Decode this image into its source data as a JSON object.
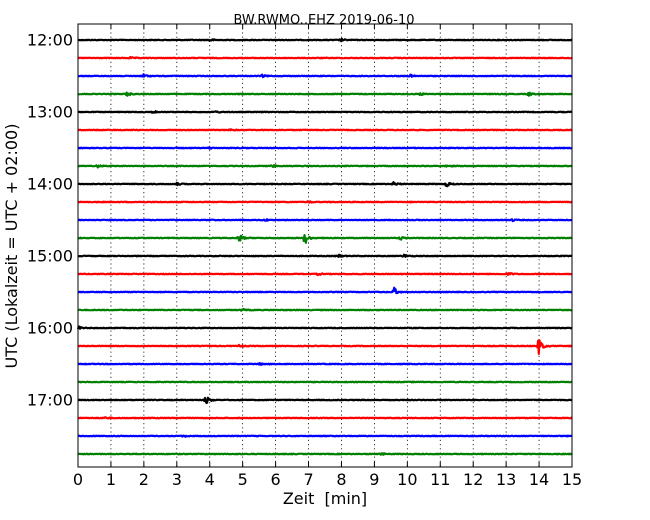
{
  "chart_data": {
    "type": "line",
    "title": "BW.RWMO..EHZ 2019-06-10",
    "xlabel": "Zeit  [min]",
    "ylabel": "UTC (Lokalzeit = UTC + 02:00)",
    "xlim": [
      0,
      15
    ],
    "x_ticks": [
      "0",
      "1",
      "2",
      "3",
      "4",
      "5",
      "6",
      "7",
      "8",
      "9",
      "10",
      "11",
      "12",
      "13",
      "14",
      "15"
    ],
    "y_ticks": [
      "12:00",
      "13:00",
      "14:00",
      "15:00",
      "16:00",
      "17:00"
    ],
    "grid": "vertical-dotted",
    "trace_colors": [
      "#000000",
      "#ff0000",
      "#0000ff",
      "#008000"
    ],
    "traces": [
      {
        "start": "12:00",
        "color": "#000000",
        "events": [
          {
            "t": 4.0,
            "amp": 0.35
          },
          {
            "t": 8.0,
            "amp": 0.3
          }
        ]
      },
      {
        "start": "12:15",
        "color": "#ff0000",
        "events": [
          {
            "t": 1.6,
            "amp": 0.2
          }
        ]
      },
      {
        "start": "12:30",
        "color": "#0000ff",
        "events": [
          {
            "t": 2.0,
            "amp": 0.5
          },
          {
            "t": 5.6,
            "amp": 0.3
          },
          {
            "t": 10.1,
            "amp": 0.3
          }
        ]
      },
      {
        "start": "12:45",
        "color": "#008000",
        "events": [
          {
            "t": 1.5,
            "amp": 0.5
          },
          {
            "t": 10.4,
            "amp": 0.3
          },
          {
            "t": 13.7,
            "amp": 0.4
          }
        ]
      },
      {
        "start": "13:00",
        "color": "#000000",
        "events": [
          {
            "t": 2.3,
            "amp": 0.3
          },
          {
            "t": 4.2,
            "amp": 0.2
          }
        ]
      },
      {
        "start": "13:15",
        "color": "#ff0000",
        "events": [
          {
            "t": 4.6,
            "amp": 0.2
          }
        ]
      },
      {
        "start": "13:30",
        "color": "#0000ff",
        "events": [
          {
            "t": 4.0,
            "amp": 0.2
          }
        ]
      },
      {
        "start": "13:45",
        "color": "#008000",
        "events": [
          {
            "t": 0.6,
            "amp": 0.3
          },
          {
            "t": 5.9,
            "amp": 0.3
          },
          {
            "t": 11.2,
            "amp": 0.3
          }
        ]
      },
      {
        "start": "14:00",
        "color": "#000000",
        "events": [
          {
            "t": 3.0,
            "amp": 0.3
          },
          {
            "t": 9.6,
            "amp": 0.5
          },
          {
            "t": 11.2,
            "amp": 0.6
          }
        ]
      },
      {
        "start": "14:15",
        "color": "#ff0000",
        "events": [
          {
            "t": 7.0,
            "amp": 0.2
          }
        ]
      },
      {
        "start": "14:30",
        "color": "#0000ff",
        "events": [
          {
            "t": 5.7,
            "amp": 0.25
          },
          {
            "t": 13.2,
            "amp": 0.25
          }
        ]
      },
      {
        "start": "14:45",
        "color": "#008000",
        "events": [
          {
            "t": 4.9,
            "amp": 1.0
          },
          {
            "t": 6.9,
            "amp": 1.5
          },
          {
            "t": 9.8,
            "amp": 0.4
          }
        ]
      },
      {
        "start": "15:00",
        "color": "#000000",
        "events": [
          {
            "t": 7.9,
            "amp": 0.4
          },
          {
            "t": 9.9,
            "amp": 0.4
          }
        ]
      },
      {
        "start": "15:15",
        "color": "#ff0000",
        "events": [
          {
            "t": 7.3,
            "amp": 0.25
          },
          {
            "t": 13.1,
            "amp": 0.35
          }
        ]
      },
      {
        "start": "15:30",
        "color": "#0000ff",
        "events": [
          {
            "t": 9.6,
            "amp": 1.0
          }
        ]
      },
      {
        "start": "15:45",
        "color": "#008000",
        "events": [
          {
            "t": 5.0,
            "amp": 0.25
          }
        ]
      },
      {
        "start": "16:00",
        "color": "#000000",
        "events": [
          {
            "t": 0.0,
            "amp": 0.45
          }
        ]
      },
      {
        "start": "16:15",
        "color": "#ff0000",
        "events": [
          {
            "t": 4.9,
            "amp": 0.3
          },
          {
            "t": 14.0,
            "amp": 2.2
          }
        ]
      },
      {
        "start": "16:30",
        "color": "#0000ff",
        "events": [
          {
            "t": 5.5,
            "amp": 0.25
          }
        ]
      },
      {
        "start": "16:45",
        "color": "#008000",
        "events": []
      },
      {
        "start": "17:00",
        "color": "#000000",
        "events": [
          {
            "t": 3.9,
            "amp": 1.1
          }
        ]
      },
      {
        "start": "17:15",
        "color": "#ff0000",
        "events": [
          {
            "t": 0.8,
            "amp": 0.3
          }
        ]
      },
      {
        "start": "17:30",
        "color": "#0000ff",
        "events": [
          {
            "t": 3.2,
            "amp": 0.2
          }
        ]
      },
      {
        "start": "17:45",
        "color": "#008000",
        "events": [
          {
            "t": 9.2,
            "amp": 0.3
          }
        ]
      }
    ]
  }
}
